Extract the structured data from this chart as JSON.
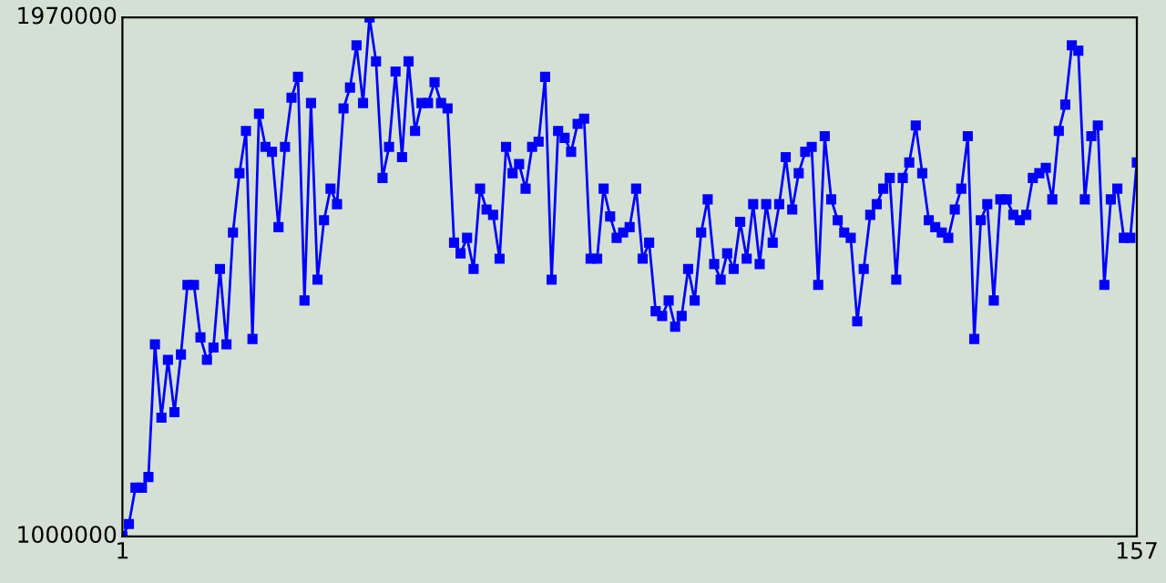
{
  "chart_data": {
    "type": "line",
    "x": [
      1,
      2,
      3,
      4,
      5,
      6,
      7,
      8,
      9,
      10,
      11,
      12,
      13,
      14,
      15,
      16,
      17,
      18,
      19,
      20,
      21,
      22,
      23,
      24,
      25,
      26,
      27,
      28,
      29,
      30,
      31,
      32,
      33,
      34,
      35,
      36,
      37,
      38,
      39,
      40,
      41,
      42,
      43,
      44,
      45,
      46,
      47,
      48,
      49,
      50,
      51,
      52,
      53,
      54,
      55,
      56,
      57,
      58,
      59,
      60,
      61,
      62,
      63,
      64,
      65,
      66,
      67,
      68,
      69,
      70,
      71,
      72,
      73,
      74,
      75,
      76,
      77,
      78,
      79,
      80,
      81,
      82,
      83,
      84,
      85,
      86,
      87,
      88,
      89,
      90,
      91,
      92,
      93,
      94,
      95,
      96,
      97,
      98,
      99,
      100,
      101,
      102,
      103,
      104,
      105,
      106,
      107,
      108,
      109,
      110,
      111,
      112,
      113,
      114,
      115,
      116,
      117,
      118,
      119,
      120,
      121,
      122,
      123,
      124,
      125,
      126,
      127,
      128,
      129,
      130,
      131,
      132,
      133,
      134,
      135,
      136,
      137,
      138,
      139,
      140,
      141,
      142,
      143,
      144,
      145,
      146,
      147,
      148,
      149,
      150,
      151,
      152,
      153,
      154,
      155,
      156,
      157
    ],
    "series": [
      {
        "color": "#0000ff",
        "values": [
          1000000,
          1023000,
          1091000,
          1091000,
          1111000,
          1359000,
          1222000,
          1330000,
          1232000,
          1340000,
          1470000,
          1470000,
          1372000,
          1330000,
          1353000,
          1500000,
          1359000,
          1568000,
          1679000,
          1758000,
          1369000,
          1790000,
          1728000,
          1719000,
          1578000,
          1728000,
          1820000,
          1859000,
          1441000,
          1810000,
          1480000,
          1591000,
          1650000,
          1621000,
          1800000,
          1839000,
          1918000,
          1810000,
          1970000,
          1888000,
          1670000,
          1728000,
          1869000,
          1709000,
          1888000,
          1758000,
          1810000,
          1810000,
          1849000,
          1810000,
          1800000,
          1549000,
          1529000,
          1558000,
          1500000,
          1650000,
          1611000,
          1601000,
          1519000,
          1728000,
          1679000,
          1696000,
          1650000,
          1728000,
          1738000,
          1859000,
          1480000,
          1758000,
          1745000,
          1719000,
          1771000,
          1781000,
          1519000,
          1519000,
          1650000,
          1598000,
          1558000,
          1568000,
          1578000,
          1650000,
          1519000,
          1549000,
          1421000,
          1412000,
          1441000,
          1392000,
          1412000,
          1500000,
          1441000,
          1568000,
          1630000,
          1509000,
          1480000,
          1529000,
          1500000,
          1588000,
          1519000,
          1621000,
          1509000,
          1621000,
          1549000,
          1621000,
          1709000,
          1611000,
          1679000,
          1719000,
          1728000,
          1470000,
          1748000,
          1630000,
          1591000,
          1568000,
          1558000,
          1402000,
          1500000,
          1601000,
          1621000,
          1650000,
          1670000,
          1480000,
          1670000,
          1699000,
          1768000,
          1679000,
          1591000,
          1578000,
          1568000,
          1558000,
          1611000,
          1650000,
          1748000,
          1369000,
          1591000,
          1621000,
          1441000,
          1630000,
          1630000,
          1601000,
          1591000,
          1601000,
          1670000,
          1679000,
          1689000,
          1630000,
          1758000,
          1807000,
          1918000,
          1908000,
          1630000,
          1748000,
          1768000,
          1470000,
          1630000,
          1650000,
          1558000,
          1558000,
          1699000
        ]
      }
    ],
    "xlim": [
      1,
      157
    ],
    "xticks": [
      1,
      157
    ],
    "ylim": [
      1000000,
      1970000
    ],
    "yticks": [
      1000000,
      1970000
    ],
    "marker": "square",
    "line_style": "solid",
    "grid": false,
    "legend": false
  }
}
